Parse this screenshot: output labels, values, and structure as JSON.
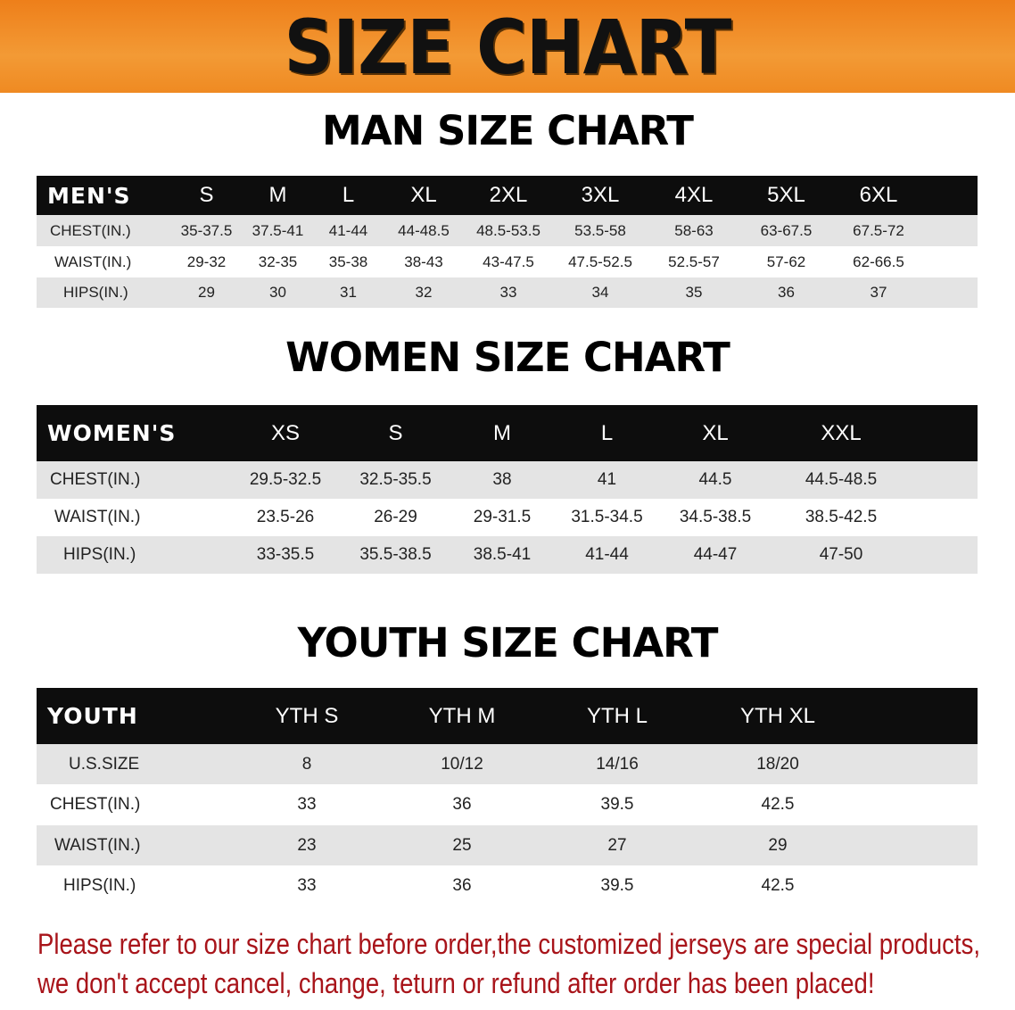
{
  "banner_title": "SIZE CHART",
  "men": {
    "title": "MAN SIZE CHART",
    "corner": "MEN'S",
    "sizes": [
      "S",
      "M",
      "L",
      "XL",
      "2XL",
      "3XL",
      "4XL",
      "5XL",
      "6XL"
    ],
    "rows": [
      {
        "label": "CHEST(IN.)",
        "values": [
          "35-37.5",
          "37.5-41",
          "41-44",
          "44-48.5",
          "48.5-53.5",
          "53.5-58",
          "58-63",
          "63-67.5",
          "67.5-72"
        ]
      },
      {
        "label": "WAIST(IN.)",
        "values": [
          "29-32",
          "32-35",
          "35-38",
          "38-43",
          "43-47.5",
          "47.5-52.5",
          "52.5-57",
          "57-62",
          "62-66.5"
        ]
      },
      {
        "label": "HIPS(IN.)",
        "values": [
          "29",
          "30",
          "31",
          "32",
          "33",
          "34",
          "35",
          "36",
          "37"
        ]
      }
    ]
  },
  "women": {
    "title": "WOMEN SIZE CHART",
    "corner": "WOMEN'S",
    "sizes": [
      "XS",
      "S",
      "M",
      "L",
      "XL",
      "XXL"
    ],
    "rows": [
      {
        "label": "CHEST(IN.)",
        "values": [
          "29.5-32.5",
          "32.5-35.5",
          "38",
          "41",
          "44.5",
          "44.5-48.5"
        ]
      },
      {
        "label": "WAIST(IN.)",
        "values": [
          "23.5-26",
          "26-29",
          "29-31.5",
          "31.5-34.5",
          "34.5-38.5",
          "38.5-42.5"
        ]
      },
      {
        "label": "HIPS(IN.)",
        "values": [
          "33-35.5",
          "35.5-38.5",
          "38.5-41",
          "41-44",
          "44-47",
          "47-50"
        ]
      }
    ]
  },
  "youth": {
    "title": "YOUTH SIZE CHART",
    "corner": "YOUTH",
    "sizes": [
      "YTH S",
      "YTH M",
      "YTH L",
      "YTH XL"
    ],
    "rows": [
      {
        "label": "U.S.SIZE",
        "values": [
          "8",
          "10/12",
          "14/16",
          "18/20"
        ]
      },
      {
        "label": "CHEST(IN.)",
        "values": [
          "33",
          "36",
          "39.5",
          "42.5"
        ]
      },
      {
        "label": "WAIST(IN.)",
        "values": [
          "23",
          "25",
          "27",
          "29"
        ]
      },
      {
        "label": "HIPS(IN.)",
        "values": [
          "33",
          "36",
          "39.5",
          "42.5"
        ]
      }
    ]
  },
  "notice": [
    "Please refer to our size chart before order,the customized jerseys are special products,",
    "we don't accept cancel, change, teturn or refund after order has been placed!"
  ],
  "colors": {
    "banner": "#ef8a22",
    "header_row": "#0d0d0d",
    "stripe": "#e4e4e4",
    "notice": "#a8141a"
  }
}
